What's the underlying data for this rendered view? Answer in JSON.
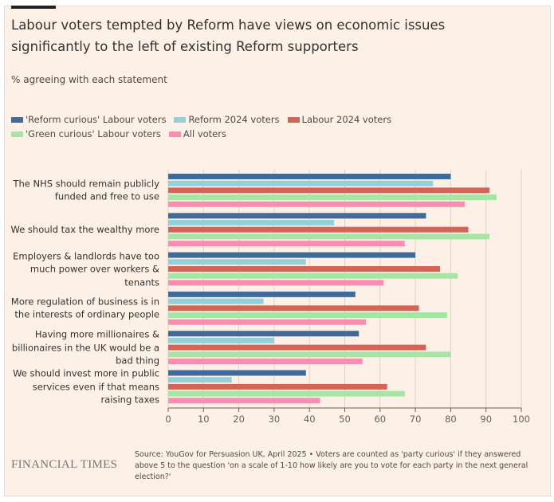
{
  "title": "Labour voters tempted by Reform have views on economic issues significantly to the left of existing Reform supporters",
  "subtitle": "% agreeing with each statement",
  "source": "Source: YouGov for Persuasion UK, April 2025 • Voters are counted as 'party curious' if they answered above 5 to the question 'on a scale of 1-10 how likely are you to vote for each party in the next general election?'",
  "publisher": "FINANCIAL TIMES",
  "chart_data": {
    "type": "bar",
    "orientation": "horizontal",
    "title": "Labour voters tempted by Reform have views on economic issues significantly to the left of existing Reform supporters",
    "xlabel": "% agreeing with each statement",
    "ylabel": "",
    "xlim": [
      0,
      100
    ],
    "xticks": [
      "0",
      "10",
      "20",
      "30",
      "40",
      "50",
      "60",
      "70",
      "80",
      "90",
      "100"
    ],
    "grid": true,
    "legend_position": "top-left",
    "categories": [
      "The NHS should remain publicly\nfunded and free to use",
      "We should tax the wealthy more",
      "Employers & landlords have too\nmuch power over workers &\ntenants",
      "More regulation of business is in\nthe interests of ordinary people",
      "Having more millionaires &\nbillionaires in the UK would be a\nbad thing",
      "We should invest more in public\nservices even if that means\nraising taxes"
    ],
    "series": [
      {
        "name": "'Reform curious' Labour voters",
        "color": "#3f6a9a",
        "values": [
          80,
          73,
          70,
          53,
          54,
          39
        ]
      },
      {
        "name": "Reform 2024 voters",
        "color": "#93d0da",
        "values": [
          75,
          47,
          39,
          27,
          30,
          18
        ]
      },
      {
        "name": "Labour 2024 voters",
        "color": "#d66456",
        "values": [
          91,
          85,
          77,
          71,
          73,
          62
        ]
      },
      {
        "name": "'Green curious' Labour voters",
        "color": "#a5e6a5",
        "values": [
          93,
          91,
          82,
          79,
          80,
          67
        ]
      },
      {
        "name": "All voters",
        "color": "#fb8db2",
        "values": [
          84,
          67,
          61,
          56,
          55,
          43
        ]
      }
    ]
  }
}
